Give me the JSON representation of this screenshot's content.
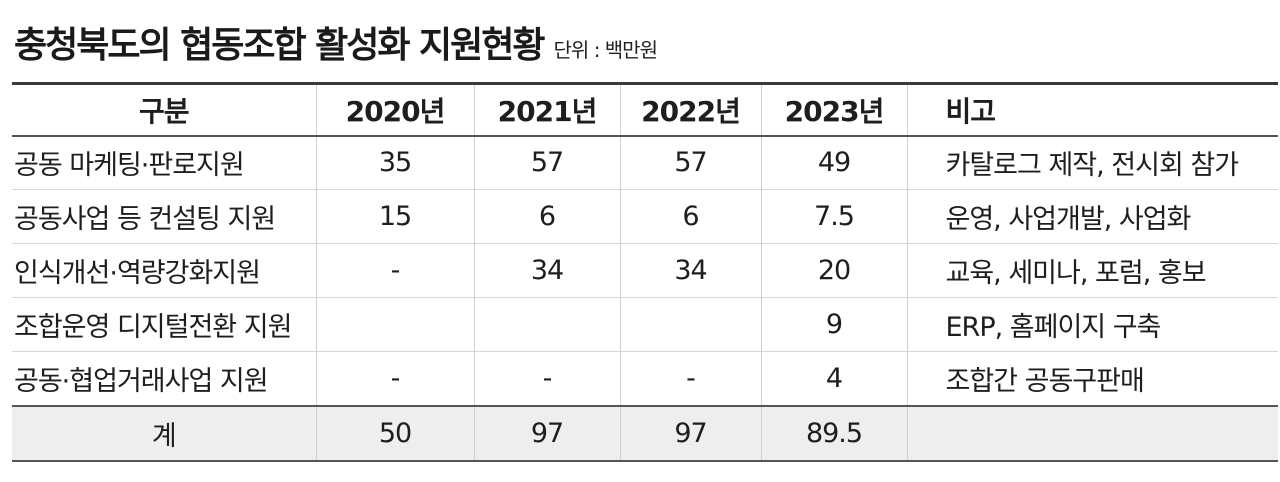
{
  "title": "충청북도의 협동조합 활성화 지원현황",
  "unit": "단위 : 백만원",
  "headers": [
    "구분",
    "2020년",
    "2021년",
    "2022년",
    "2023년",
    "비고"
  ],
  "rows": [
    {
      "category": "공동 마케팅·판로지원",
      "y2020": "35",
      "y2021": "57",
      "y2022": "57",
      "y2023": "49",
      "remark": "카탈로그 제작, 전시회 참가"
    },
    {
      "category": "공동사업 등 컨설팅 지원",
      "y2020": "15",
      "y2021": "6",
      "y2022": "6",
      "y2023": "7.5",
      "remark": "운영, 사업개발, 사업화"
    },
    {
      "category": "인식개선·역량강화지원",
      "y2020": "-",
      "y2021": "34",
      "y2022": "34",
      "y2023": "20",
      "remark": "교육, 세미나, 포럼, 홍보"
    },
    {
      "category": "조합운영 디지털전환 지원",
      "y2020": "",
      "y2021": "",
      "y2022": "",
      "y2023": "9",
      "remark": "ERP, 홈페이지 구축"
    },
    {
      "category": "공동·협업거래사업 지원",
      "y2020": "-",
      "y2021": "-",
      "y2022": "-",
      "y2023": "4",
      "remark": "조합간 공동구판매"
    }
  ],
  "total": {
    "label": "계",
    "y2020": "50",
    "y2021": "97",
    "y2022": "97",
    "y2023": "89.5",
    "remark": ""
  }
}
